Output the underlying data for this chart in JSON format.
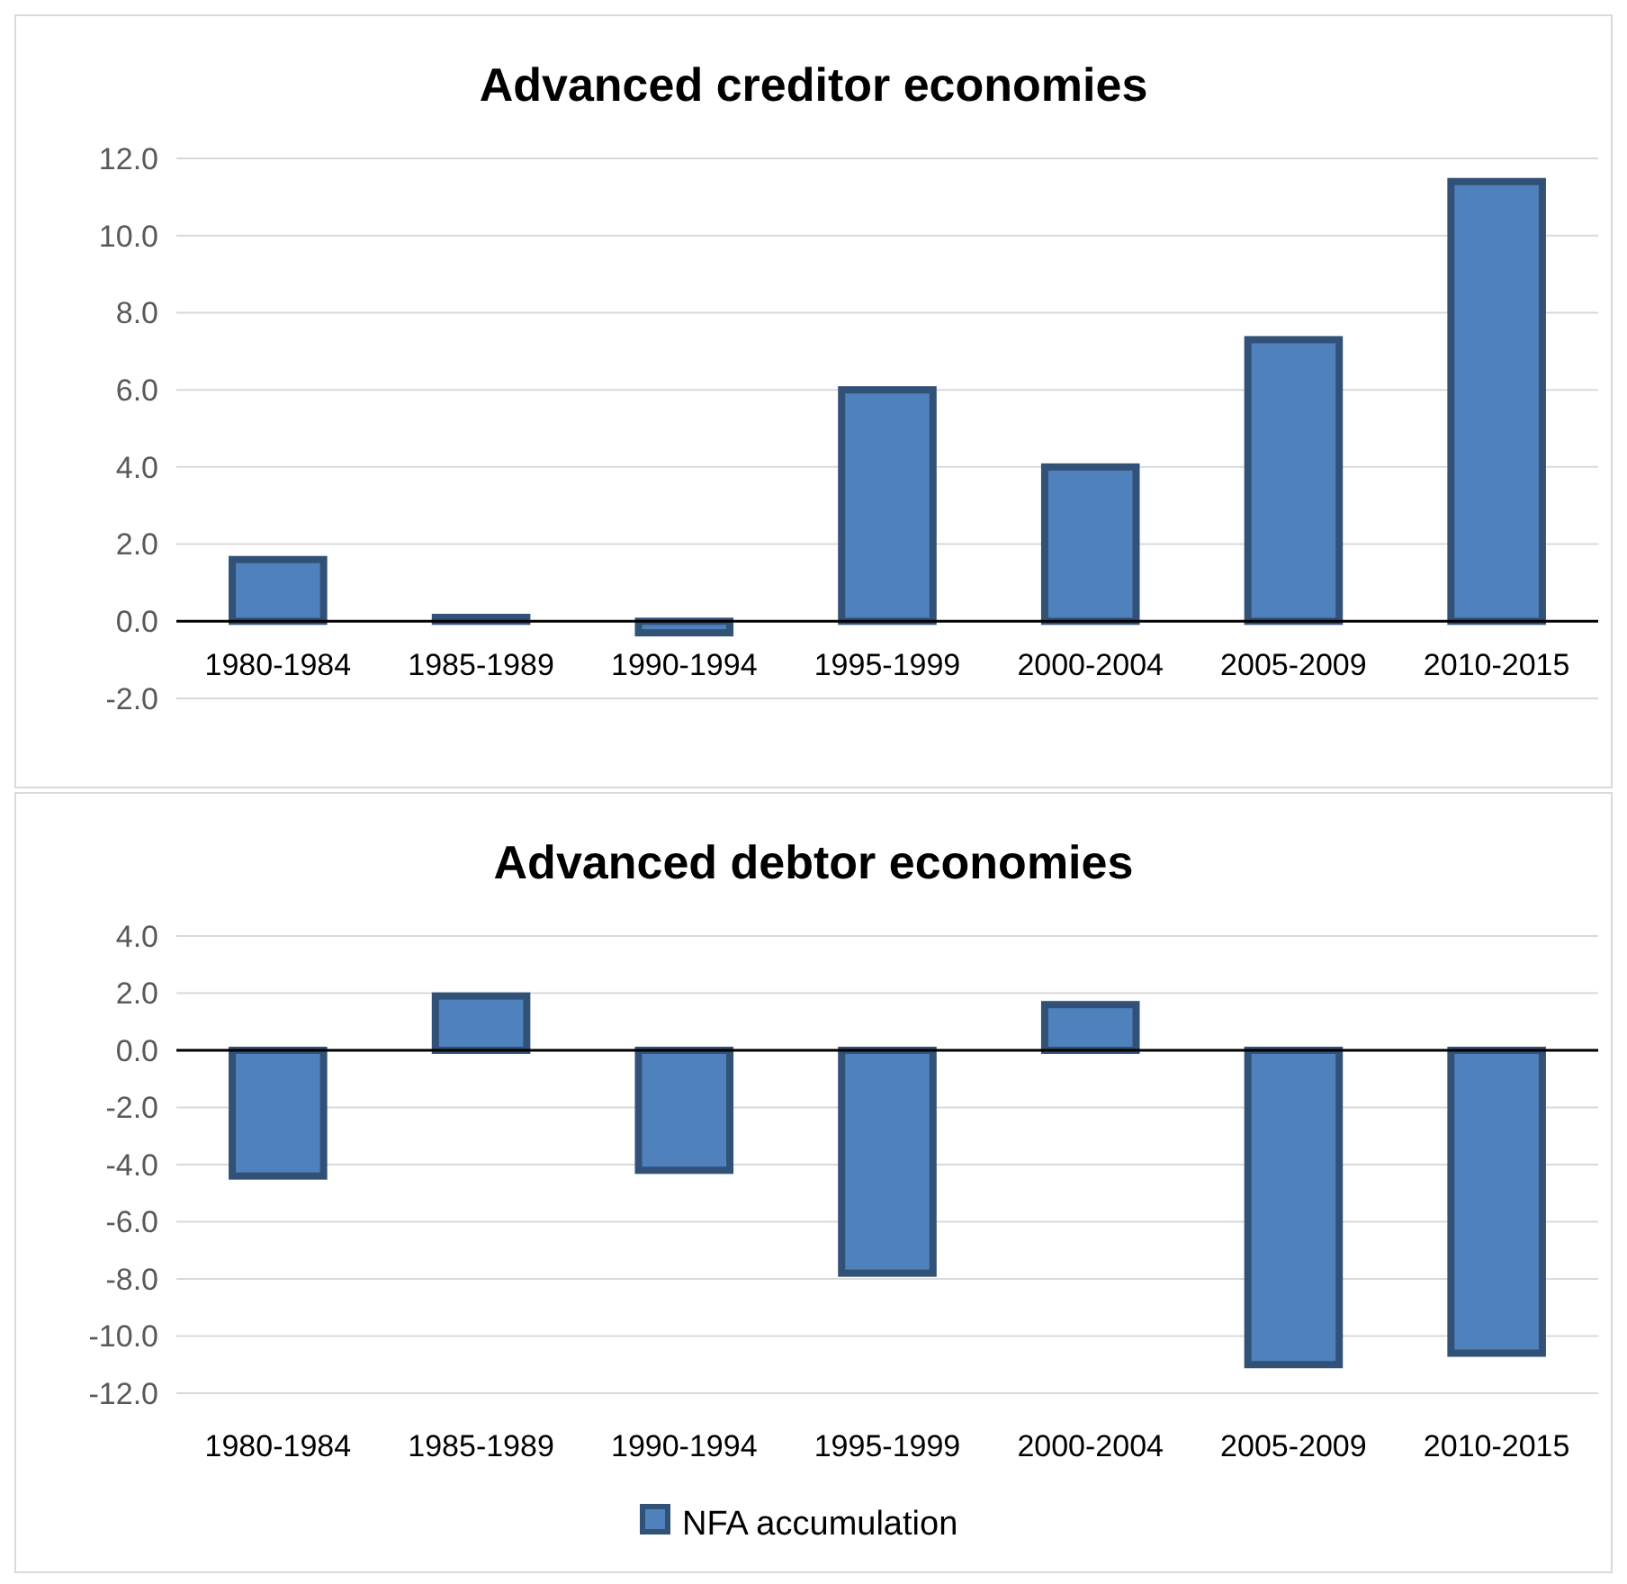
{
  "chart_data": [
    {
      "type": "bar",
      "title": "Advanced creditor economies",
      "categories": [
        "1980-1984",
        "1985-1989",
        "1990-1994",
        "1995-1999",
        "2000-2004",
        "2005-2009",
        "2010-2015"
      ],
      "series": [
        {
          "color": "#4f81bd",
          "values": [
            1.6,
            0.1,
            -0.3,
            6.0,
            4.0,
            7.3,
            11.4
          ]
        }
      ],
      "ylim": [
        -2,
        12
      ],
      "yticks": [
        {
          "value": -2,
          "label": "-2.0"
        },
        {
          "value": 0,
          "label": "0.0"
        },
        {
          "value": 2,
          "label": "2.0"
        },
        {
          "value": 4,
          "label": "4.0"
        },
        {
          "value": 6,
          "label": "6.0"
        },
        {
          "value": 8,
          "label": "8.0"
        },
        {
          "value": 10,
          "label": "10.0"
        },
        {
          "value": 12,
          "label": "12.0"
        }
      ],
      "grid": "y"
    },
    {
      "type": "bar",
      "title": "Advanced debtor economies",
      "categories": [
        "1980-1984",
        "1985-1989",
        "1990-1994",
        "1995-1999",
        "2000-2004",
        "2005-2009",
        "2010-2015"
      ],
      "series": [
        {
          "name": "NFA accumulation",
          "color": "#4f81bd",
          "values": [
            -4.4,
            1.9,
            -4.2,
            -7.8,
            1.6,
            -11.0,
            -10.6
          ]
        }
      ],
      "ylim": [
        -12,
        4
      ],
      "yticks": [
        {
          "value": -12,
          "label": "-12.0"
        },
        {
          "value": -10,
          "label": "-10.0"
        },
        {
          "value": -8,
          "label": "-8.0"
        },
        {
          "value": -6,
          "label": "-6.0"
        },
        {
          "value": -4,
          "label": "-4.0"
        },
        {
          "value": -2,
          "label": "-2.0"
        },
        {
          "value": 0,
          "label": "0.0"
        },
        {
          "value": 2,
          "label": "2.0"
        },
        {
          "value": 4,
          "label": "4.0"
        }
      ],
      "grid": "y",
      "legend": "bottom"
    }
  ]
}
